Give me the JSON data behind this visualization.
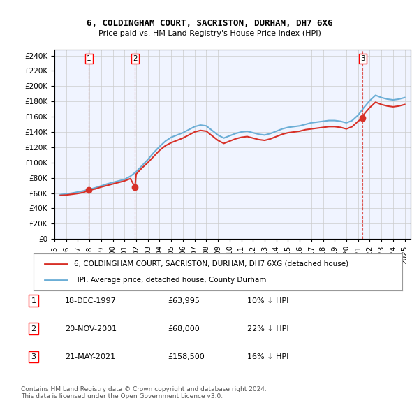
{
  "title": "6, COLDINGHAM COURT, SACRISTON, DURHAM, DH7 6XG",
  "subtitle": "Price paid vs. HM Land Registry's House Price Index (HPI)",
  "ylabel_ticks": [
    "£0",
    "£20K",
    "£40K",
    "£60K",
    "£80K",
    "£100K",
    "£120K",
    "£140K",
    "£160K",
    "£180K",
    "£200K",
    "£220K",
    "£240K"
  ],
  "ytick_values": [
    0,
    20000,
    40000,
    60000,
    80000,
    100000,
    120000,
    140000,
    160000,
    180000,
    200000,
    220000,
    240000
  ],
  "ylim": [
    0,
    248000
  ],
  "xlim_start": 1995.5,
  "xlim_end": 2025.5,
  "hpi_color": "#6baed6",
  "price_color": "#d73027",
  "vline_color": "#d73027",
  "grid_color": "#cccccc",
  "bg_color": "#f0f4ff",
  "plot_bg": "#f0f4ff",
  "sale_dates": [
    1997.96,
    2001.89,
    2021.39
  ],
  "sale_prices": [
    63995,
    68000,
    158500
  ],
  "sale_labels": [
    "1",
    "2",
    "3"
  ],
  "legend_label_price": "6, COLDINGHAM COURT, SACRISTON, DURHAM, DH7 6XG (detached house)",
  "legend_label_hpi": "HPI: Average price, detached house, County Durham",
  "table_entries": [
    {
      "num": "1",
      "date": "18-DEC-1997",
      "price": "£63,995",
      "pct": "10% ↓ HPI"
    },
    {
      "num": "2",
      "date": "20-NOV-2001",
      "price": "£68,000",
      "pct": "22% ↓ HPI"
    },
    {
      "num": "3",
      "date": "21-MAY-2021",
      "price": "£158,500",
      "pct": "16% ↓ HPI"
    }
  ],
  "footer": "Contains HM Land Registry data © Crown copyright and database right 2024.\nThis data is licensed under the Open Government Licence v3.0.",
  "hpi_data": {
    "years": [
      1995.5,
      1996.0,
      1996.5,
      1997.0,
      1997.5,
      1998.0,
      1998.5,
      1999.0,
      1999.5,
      2000.0,
      2000.5,
      2001.0,
      2001.5,
      2002.0,
      2002.5,
      2003.0,
      2003.5,
      2004.0,
      2004.5,
      2005.0,
      2005.5,
      2006.0,
      2006.5,
      2007.0,
      2007.5,
      2008.0,
      2008.5,
      2009.0,
      2009.5,
      2010.0,
      2010.5,
      2011.0,
      2011.5,
      2012.0,
      2012.5,
      2013.0,
      2013.5,
      2014.0,
      2014.5,
      2015.0,
      2015.5,
      2016.0,
      2016.5,
      2017.0,
      2017.5,
      2018.0,
      2018.5,
      2019.0,
      2019.5,
      2020.0,
      2020.5,
      2021.0,
      2021.5,
      2022.0,
      2022.5,
      2023.0,
      2023.5,
      2024.0,
      2024.5,
      2025.0
    ],
    "values": [
      58000,
      59000,
      60000,
      61500,
      63000,
      65000,
      67000,
      69500,
      72000,
      74000,
      76000,
      78000,
      82000,
      88000,
      96000,
      104000,
      113000,
      121000,
      128000,
      133000,
      136000,
      139000,
      143000,
      147000,
      149000,
      148000,
      142000,
      136000,
      132000,
      135000,
      138000,
      140000,
      141000,
      139000,
      137000,
      136000,
      138000,
      141000,
      144000,
      146000,
      147000,
      148000,
      150000,
      152000,
      153000,
      154000,
      155000,
      155000,
      154000,
      152000,
      155000,
      162000,
      172000,
      181000,
      188000,
      185000,
      183000,
      182000,
      183000,
      185000
    ]
  },
  "price_index_data": {
    "years": [
      1995.5,
      1996.0,
      1996.5,
      1997.0,
      1997.5,
      1997.96,
      1998.0,
      1998.5,
      1999.0,
      1999.5,
      2000.0,
      2000.5,
      2001.0,
      2001.5,
      2001.89,
      2002.0,
      2002.5,
      2003.0,
      2003.5,
      2004.0,
      2004.5,
      2005.0,
      2005.5,
      2006.0,
      2006.5,
      2007.0,
      2007.5,
      2008.0,
      2008.5,
      2009.0,
      2009.5,
      2010.0,
      2010.5,
      2011.0,
      2011.5,
      2012.0,
      2012.5,
      2013.0,
      2013.5,
      2014.0,
      2014.5,
      2015.0,
      2015.5,
      2016.0,
      2016.5,
      2017.0,
      2017.5,
      2018.0,
      2018.5,
      2019.0,
      2019.5,
      2020.0,
      2020.5,
      2021.0,
      2021.39,
      2021.5,
      2022.0,
      2022.5,
      2023.0,
      2023.5,
      2024.0,
      2024.5,
      2025.0
    ],
    "values": [
      57000,
      57500,
      58500,
      59500,
      61000,
      63995,
      64000,
      65500,
      68000,
      70000,
      72000,
      74000,
      76000,
      79000,
      68000,
      85000,
      93000,
      100000,
      108000,
      116000,
      122000,
      126000,
      129000,
      132000,
      136000,
      140000,
      142000,
      141000,
      135000,
      129000,
      125000,
      128000,
      131000,
      133000,
      134000,
      132000,
      130000,
      129000,
      131000,
      134000,
      137000,
      139000,
      140000,
      141000,
      143000,
      144000,
      145000,
      146000,
      147000,
      147000,
      146000,
      144000,
      147000,
      154000,
      158500,
      163000,
      172000,
      179000,
      176000,
      174000,
      173000,
      174000,
      176000
    ]
  },
  "xtick_years": [
    1995,
    1996,
    1997,
    1998,
    1999,
    2000,
    2001,
    2002,
    2003,
    2004,
    2005,
    2006,
    2007,
    2008,
    2009,
    2010,
    2011,
    2012,
    2013,
    2014,
    2015,
    2016,
    2017,
    2018,
    2019,
    2020,
    2021,
    2022,
    2023,
    2024,
    2025
  ]
}
